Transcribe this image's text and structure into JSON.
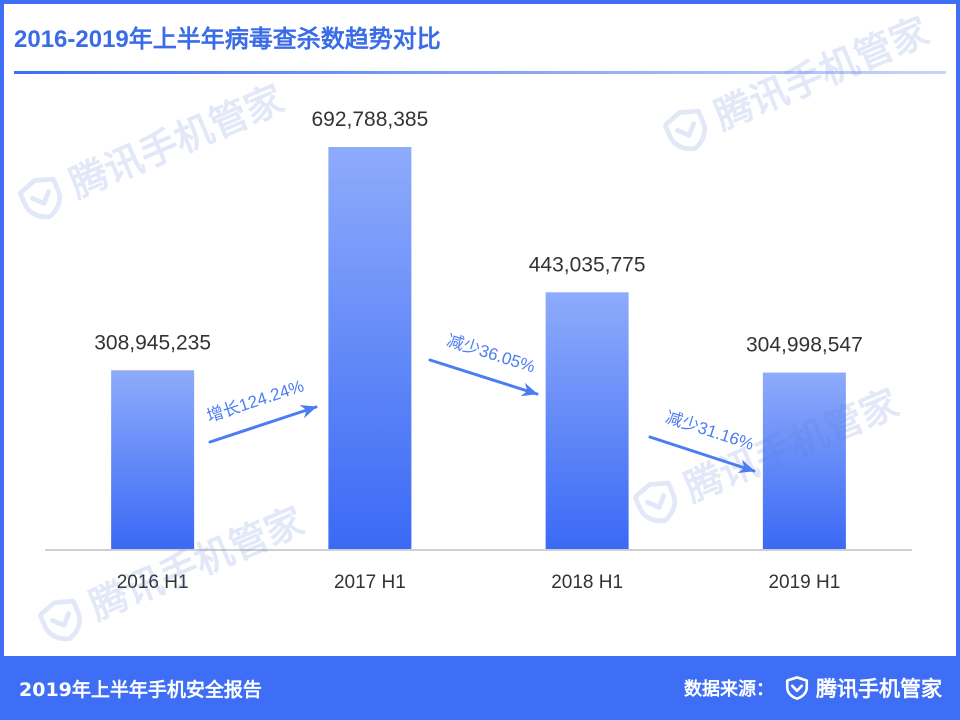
{
  "chart_data": {
    "type": "bar",
    "title": "2016-2019年上半年病毒查杀数趋势对比",
    "categories": [
      "2016 H1",
      "2017 H1",
      "2018 H1",
      "2019 H1"
    ],
    "values": [
      308945235,
      692788385,
      443035775,
      304998547
    ],
    "data_labels": [
      "308,945,235",
      "692,788,385",
      "443,035,775",
      "304,998,547"
    ],
    "annotations": [
      "增长124.24%",
      "减少36.05%",
      "减少31.16%"
    ],
    "grid": false
  },
  "watermark": {
    "text": "腾讯手机管家",
    "icon": "shield-check-icon"
  },
  "footer": {
    "report_title": "2019年上半年手机安全报告",
    "source_label": "数据来源：",
    "brand_icon": "shield-check-icon",
    "brand_name": "腾讯手机管家"
  },
  "colors": {
    "accent": "#3d6ef5",
    "title": "#3b6ce8",
    "underline_end": "#c7d5fb",
    "bar_top": "#8eabfb",
    "bar_bottom": "#3a69f5",
    "annotation": "#4a7df2",
    "axis": "#cfcfcf",
    "label": "#333333",
    "watermark": "#5a7ed2",
    "footer_text": "#ffffff"
  }
}
